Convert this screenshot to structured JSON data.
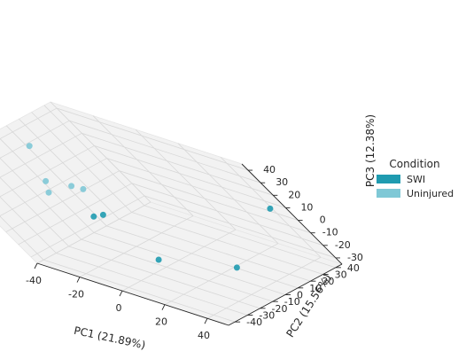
{
  "chart_data": {
    "type": "scatter",
    "projection": "3d",
    "xlabel": "PC1 (21.89%)",
    "ylabel": "PC2 (15.56%)",
    "zlabel": "PC3 (12.38%)",
    "x_ticks": [
      -40,
      -20,
      0,
      20,
      40
    ],
    "y_ticks": [
      -40,
      -30,
      -20,
      -10,
      0,
      10,
      20,
      30,
      40
    ],
    "z_ticks": [
      -30,
      -20,
      -10,
      0,
      10,
      20,
      30,
      40
    ],
    "xlim": [
      -40,
      50
    ],
    "ylim": [
      -45,
      45
    ],
    "zlim": [
      -35,
      45
    ],
    "grid": true,
    "legend": {
      "title": "Condition",
      "position": "right",
      "entries": [
        {
          "label": "SWI",
          "color": "#1f9bb0"
        },
        {
          "label": "Uninjured",
          "color": "#7fc8d6"
        }
      ]
    },
    "series": [
      {
        "name": "SWI",
        "color": "#1f9bb0",
        "points": [
          {
            "x": 48,
            "y": 38,
            "z": 12
          },
          {
            "x": 42,
            "y": -5,
            "z": -15
          },
          {
            "x": -5,
            "y": -12,
            "z": 5
          },
          {
            "x": -10,
            "y": -14,
            "z": 2
          },
          {
            "x": 20,
            "y": -25,
            "z": -10
          }
        ]
      },
      {
        "name": "Uninjured",
        "color": "#7fc8d6",
        "points": [
          {
            "x": -38,
            "y": 10,
            "z": 30
          },
          {
            "x": -30,
            "y": 5,
            "z": 5
          },
          {
            "x": -35,
            "y": -2,
            "z": 10
          },
          {
            "x": -28,
            "y": 8,
            "z": 2
          },
          {
            "x": -30,
            "y": -10,
            "z": 8
          }
        ]
      }
    ]
  }
}
